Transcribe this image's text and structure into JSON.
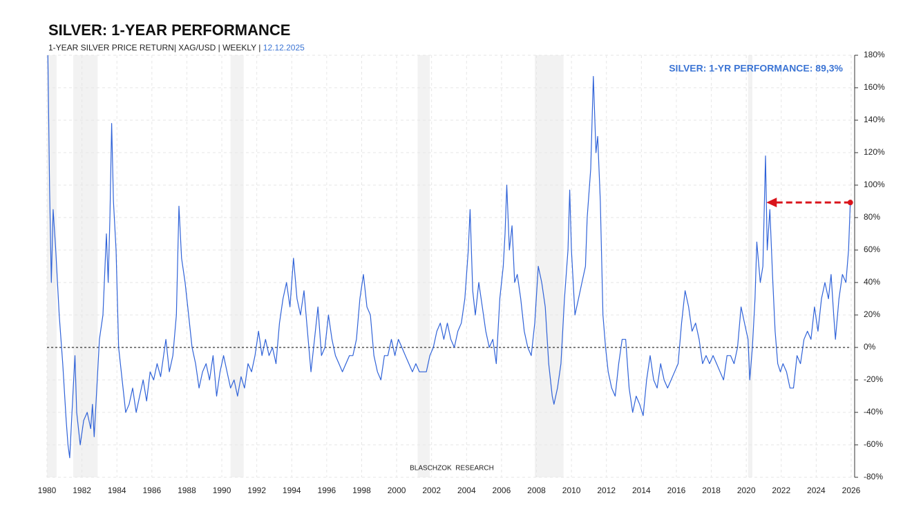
{
  "chart_data": {
    "type": "line",
    "title": "SILVER: 1-YEAR PERFORMANCE",
    "subtitle": "1-YEAR SILVER PRICE RETURN| XAG/USD | WEEKLY | ",
    "date": "12.12.2025",
    "annotation": "SILVER: 1-YR PERFORMANCE: 89,3%",
    "footer": "BLASCHZOK  RESEARCH",
    "color": "#2f62d8",
    "grid": true,
    "hline": 0,
    "shaded_periods": [
      [
        1980.0,
        1980.55
      ],
      [
        1981.5,
        1982.9
      ],
      [
        1990.5,
        1991.25
      ],
      [
        2001.2,
        2001.9
      ],
      [
        2007.9,
        2009.55
      ],
      [
        2020.1,
        2020.35
      ]
    ],
    "arrow": {
      "from_x": 2025.95,
      "to_x": 2021.15,
      "y": 89.3
    },
    "xlim": [
      1980,
      2026
    ],
    "xticks": [
      1980,
      1982,
      1984,
      1986,
      1988,
      1990,
      1992,
      1994,
      1996,
      1998,
      2000,
      2002,
      2004,
      2006,
      2008,
      2010,
      2012,
      2014,
      2016,
      2018,
      2020,
      2022,
      2024,
      2026
    ],
    "ylim": [
      -80,
      180
    ],
    "yticks": [
      {
        "value": -80,
        "label": "-80%"
      },
      {
        "value": -60,
        "label": "-60%"
      },
      {
        "value": -40,
        "label": "-40%"
      },
      {
        "value": -20,
        "label": "-20%"
      },
      {
        "value": 0,
        "label": "0%"
      },
      {
        "value": 20,
        "label": "20%"
      },
      {
        "value": 40,
        "label": "40%"
      },
      {
        "value": 60,
        "label": "60%"
      },
      {
        "value": 80,
        "label": "80%"
      },
      {
        "value": 100,
        "label": "100%"
      },
      {
        "value": 120,
        "label": "120%"
      },
      {
        "value": 140,
        "label": "140%"
      },
      {
        "value": 160,
        "label": "160%"
      },
      {
        "value": 180,
        "label": "180%"
      }
    ],
    "x": [
      1980.05,
      1980.15,
      1980.25,
      1980.35,
      1980.5,
      1980.7,
      1980.9,
      1981.1,
      1981.2,
      1981.3,
      1981.5,
      1981.6,
      1981.7,
      1981.9,
      1982.1,
      1982.3,
      1982.5,
      1982.6,
      1982.7,
      1982.9,
      1983.0,
      1983.2,
      1983.4,
      1983.5,
      1983.6,
      1983.7,
      1983.8,
      1983.95,
      1984.1,
      1984.3,
      1984.5,
      1984.7,
      1984.9,
      1985.1,
      1985.3,
      1985.5,
      1985.7,
      1985.9,
      1986.1,
      1986.3,
      1986.5,
      1986.8,
      1987.0,
      1987.2,
      1987.4,
      1987.55,
      1987.7,
      1987.9,
      1988.1,
      1988.3,
      1988.5,
      1988.7,
      1988.9,
      1989.1,
      1989.3,
      1989.5,
      1989.7,
      1989.9,
      1990.1,
      1990.3,
      1990.5,
      1990.7,
      1990.9,
      1991.1,
      1991.3,
      1991.5,
      1991.7,
      1991.9,
      1992.1,
      1992.3,
      1992.5,
      1992.7,
      1992.9,
      1993.1,
      1993.3,
      1993.5,
      1993.7,
      1993.9,
      1994.1,
      1994.3,
      1994.5,
      1994.7,
      1994.9,
      1995.1,
      1995.3,
      1995.5,
      1995.7,
      1995.9,
      1996.1,
      1996.3,
      1996.5,
      1996.7,
      1996.9,
      1997.1,
      1997.3,
      1997.5,
      1997.7,
      1997.9,
      1998.1,
      1998.3,
      1998.5,
      1998.7,
      1998.9,
      1999.1,
      1999.3,
      1999.5,
      1999.7,
      1999.9,
      2000.1,
      2000.3,
      2000.5,
      2000.7,
      2000.9,
      2001.1,
      2001.3,
      2001.5,
      2001.7,
      2001.9,
      2002.1,
      2002.3,
      2002.5,
      2002.7,
      2002.9,
      2003.1,
      2003.3,
      2003.5,
      2003.7,
      2003.9,
      2004.1,
      2004.2,
      2004.35,
      2004.5,
      2004.7,
      2004.9,
      2005.1,
      2005.3,
      2005.5,
      2005.7,
      2005.9,
      2006.1,
      2006.2,
      2006.3,
      2006.45,
      2006.6,
      2006.75,
      2006.9,
      2007.1,
      2007.3,
      2007.5,
      2007.7,
      2007.9,
      2008.1,
      2008.3,
      2008.5,
      2008.7,
      2008.9,
      2009.0,
      2009.2,
      2009.4,
      2009.6,
      2009.8,
      2009.9,
      2010.0,
      2010.2,
      2010.4,
      2010.6,
      2010.8,
      2010.9,
      2011.1,
      2011.25,
      2011.4,
      2011.5,
      2011.65,
      2011.8,
      2011.95,
      2012.1,
      2012.3,
      2012.5,
      2012.7,
      2012.9,
      2013.1,
      2013.3,
      2013.5,
      2013.7,
      2013.9,
      2014.1,
      2014.3,
      2014.5,
      2014.7,
      2014.9,
      2015.1,
      2015.3,
      2015.5,
      2015.7,
      2015.9,
      2016.1,
      2016.3,
      2016.5,
      2016.7,
      2016.9,
      2017.1,
      2017.3,
      2017.5,
      2017.7,
      2017.9,
      2018.1,
      2018.3,
      2018.5,
      2018.7,
      2018.9,
      2019.1,
      2019.3,
      2019.5,
      2019.7,
      2019.9,
      2020.1,
      2020.2,
      2020.35,
      2020.5,
      2020.6,
      2020.8,
      2020.95,
      2021.1,
      2021.2,
      2021.35,
      2021.5,
      2021.65,
      2021.8,
      2021.95,
      2022.1,
      2022.3,
      2022.5,
      2022.7,
      2022.9,
      2023.1,
      2023.3,
      2023.5,
      2023.7,
      2023.9,
      2024.1,
      2024.3,
      2024.5,
      2024.7,
      2024.85,
      2025.0,
      2025.1,
      2025.3,
      2025.5,
      2025.7,
      2025.85,
      2025.95
    ],
    "values": [
      180,
      97,
      40,
      85,
      60,
      20,
      -10,
      -45,
      -60,
      -68,
      -25,
      -5,
      -40,
      -60,
      -45,
      -40,
      -50,
      -35,
      -55,
      -15,
      5,
      20,
      70,
      40,
      80,
      138,
      90,
      60,
      0,
      -20,
      -40,
      -35,
      -25,
      -40,
      -30,
      -20,
      -33,
      -15,
      -20,
      -10,
      -18,
      5,
      -15,
      -5,
      20,
      87,
      55,
      40,
      20,
      0,
      -10,
      -25,
      -15,
      -10,
      -20,
      -5,
      -30,
      -15,
      -5,
      -15,
      -25,
      -20,
      -30,
      -18,
      -25,
      -10,
      -15,
      -5,
      10,
      -5,
      5,
      -5,
      0,
      -10,
      15,
      30,
      40,
      25,
      55,
      30,
      20,
      35,
      10,
      -15,
      5,
      25,
      -5,
      0,
      20,
      5,
      -5,
      -10,
      -15,
      -10,
      -5,
      -5,
      5,
      30,
      45,
      25,
      20,
      -5,
      -15,
      -20,
      -5,
      -5,
      5,
      -5,
      5,
      0,
      -5,
      -10,
      -15,
      -10,
      -15,
      -15,
      -15,
      -5,
      0,
      10,
      15,
      5,
      15,
      5,
      0,
      10,
      15,
      30,
      60,
      85,
      35,
      20,
      40,
      25,
      10,
      0,
      5,
      -10,
      30,
      50,
      70,
      100,
      60,
      75,
      40,
      45,
      30,
      10,
      0,
      -5,
      15,
      50,
      40,
      25,
      -10,
      -30,
      -35,
      -25,
      -10,
      30,
      60,
      97,
      60,
      20,
      30,
      40,
      50,
      80,
      110,
      167,
      120,
      130,
      90,
      20,
      0,
      -15,
      -25,
      -30,
      -10,
      5,
      5,
      -25,
      -40,
      -30,
      -35,
      -42,
      -20,
      -5,
      -20,
      -25,
      -10,
      -20,
      -25,
      -20,
      -15,
      -10,
      15,
      35,
      25,
      10,
      15,
      5,
      -10,
      -5,
      -10,
      -5,
      -10,
      -15,
      -20,
      -5,
      -5,
      -10,
      0,
      25,
      15,
      5,
      -20,
      0,
      30,
      65,
      40,
      50,
      118,
      60,
      85,
      45,
      10,
      -10,
      -15,
      -10,
      -15,
      -25,
      -25,
      -5,
      -10,
      5,
      10,
      5,
      25,
      10,
      30,
      40,
      30,
      45,
      20,
      5,
      30,
      45,
      40,
      60,
      89.3
    ]
  }
}
